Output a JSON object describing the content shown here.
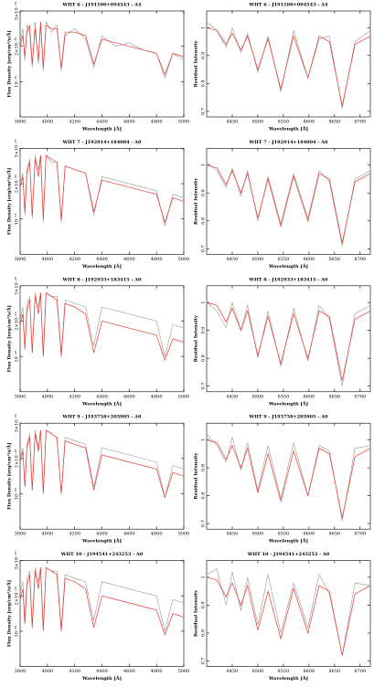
{
  "chart_data": [
    {
      "type": "line",
      "title": "WHT 6 - J191100+094543 - A4",
      "xlabel": "Wavelength [Å]",
      "ylabel": "Flux Density [erg/cm²/s/Å]",
      "x": [
        3800,
        3820,
        3835,
        3850,
        3870,
        3889,
        3910,
        3934,
        3950,
        3970,
        3990,
        4030,
        4070,
        4102,
        4130,
        4200,
        4280,
        4340,
        4400,
        4500,
        4600,
        4700,
        4800,
        4861,
        4920,
        5000
      ],
      "series": [
        {
          "color": "#999999",
          "values": [
            2.1,
            2.5,
            1.6,
            2.6,
            2.4,
            1.4,
            2.7,
            1.5,
            2.6,
            1.3,
            2.7,
            2.4,
            2.6,
            1.3,
            2.3,
            2.5,
            2.2,
            1.4,
            2.3,
            2.0,
            2.1,
            1.9,
            1.8,
            1.1,
            1.8,
            1.6
          ]
        },
        {
          "color": "#e8382e",
          "values": [
            2.0,
            2.3,
            1.7,
            2.4,
            2.6,
            1.5,
            2.5,
            1.6,
            2.7,
            1.4,
            2.6,
            2.5,
            2.5,
            1.4,
            2.4,
            2.4,
            2.3,
            1.5,
            2.2,
            2.1,
            2.0,
            1.9,
            1.8,
            1.2,
            1.8,
            1.7
          ]
        }
      ],
      "xlim": [
        3800,
        5000
      ],
      "xticks": [
        3800,
        4000,
        4200,
        4400,
        4600,
        4800,
        5000
      ],
      "ylim": [
        0,
        3
      ],
      "yticks": [
        {
          "value": 1,
          "label": "10⁻¹⁵"
        },
        {
          "value": 2,
          "label": "2×10⁻¹⁵"
        },
        {
          "value": 3,
          "label": "3×10⁻¹⁵"
        }
      ]
    },
    {
      "type": "line",
      "title": "WHT 6 - J191100+094543 - A4",
      "xlabel": "Wavelength [Å]",
      "ylabel": "Residual Intensity",
      "x": [
        8400,
        8420,
        8438,
        8450,
        8467,
        8480,
        8500,
        8520,
        8545,
        8570,
        8598,
        8620,
        8640,
        8665,
        8690,
        8720
      ],
      "series": [
        {
          "color": "#999999",
          "values": [
            1.02,
            0.99,
            0.93,
            1.0,
            0.91,
            0.98,
            0.84,
            0.97,
            0.77,
            0.99,
            0.82,
            0.96,
            0.97,
            0.71,
            0.95,
            0.99
          ]
        },
        {
          "color": "#e8382e",
          "values": [
            1.0,
            0.99,
            0.94,
            0.98,
            0.92,
            0.97,
            0.85,
            0.96,
            0.78,
            0.97,
            0.82,
            0.97,
            0.95,
            0.72,
            0.94,
            0.97
          ]
        }
      ],
      "xlim": [
        8400,
        8720
      ],
      "xticks": [
        8450,
        8500,
        8550,
        8600,
        8650,
        8700
      ],
      "ylim": [
        0.68,
        1.06
      ],
      "yticks": [
        0.7,
        0.8,
        0.9,
        1
      ]
    },
    {
      "type": "line",
      "title": "WHT 7 - J192914+184004 - A0",
      "xlabel": "Wavelength [Å]",
      "ylabel": "Flux Density [erg/cm²/s/Å]",
      "x": [
        3800,
        3820,
        3835,
        3850,
        3870,
        3889,
        3910,
        3934,
        3950,
        3970,
        3990,
        4030,
        4070,
        4102,
        4130,
        4200,
        4280,
        4340,
        4400,
        4500,
        4600,
        4700,
        4800,
        4861,
        4920,
        5000
      ],
      "series": [
        {
          "color": "#999999",
          "values": [
            2.0,
            2.3,
            1.1,
            2.4,
            2.7,
            1.0,
            2.8,
            2.4,
            2.8,
            0.9,
            2.8,
            2.6,
            2.6,
            0.9,
            2.5,
            2.4,
            2.3,
            1.1,
            2.2,
            2.1,
            2.0,
            1.9,
            1.8,
            0.8,
            1.7,
            1.6
          ]
        },
        {
          "color": "#e8382e",
          "values": [
            1.9,
            2.2,
            1.2,
            2.3,
            2.6,
            1.1,
            2.7,
            2.2,
            2.8,
            1.0,
            2.8,
            2.7,
            2.6,
            1.0,
            2.5,
            2.4,
            2.3,
            1.2,
            2.1,
            2.0,
            1.9,
            1.8,
            1.7,
            0.9,
            1.6,
            1.5
          ]
        }
      ],
      "xlim": [
        3800,
        5000
      ],
      "xticks": [
        3800,
        4000,
        4200,
        4400,
        4600,
        4800,
        5000
      ],
      "ylim": [
        0,
        3
      ],
      "yticks": [
        {
          "value": 1,
          "label": "10⁻¹⁵"
        },
        {
          "value": 2,
          "label": "2×10⁻¹⁵"
        },
        {
          "value": 3,
          "label": "3×10⁻¹⁵"
        }
      ]
    },
    {
      "type": "line",
      "title": "WHT 7 - J192914+184004 - A0",
      "xlabel": "Wavelength [Å]",
      "ylabel": "Residual Intensity",
      "x": [
        8400,
        8420,
        8438,
        8450,
        8467,
        8480,
        8500,
        8520,
        8545,
        8570,
        8598,
        8620,
        8640,
        8665,
        8690,
        8720
      ],
      "series": [
        {
          "color": "#999999",
          "values": [
            1.01,
            0.98,
            0.92,
            0.99,
            0.89,
            0.98,
            0.8,
            0.96,
            0.79,
            0.97,
            0.81,
            0.98,
            0.94,
            0.71,
            0.95,
            0.98
          ]
        },
        {
          "color": "#e8382e",
          "values": [
            1.0,
            0.99,
            0.93,
            0.98,
            0.9,
            0.97,
            0.81,
            0.95,
            0.78,
            0.96,
            0.8,
            0.97,
            0.95,
            0.72,
            0.94,
            0.97
          ]
        }
      ],
      "xlim": [
        8400,
        8720
      ],
      "xticks": [
        8450,
        8500,
        8550,
        8600,
        8650,
        8700
      ],
      "ylim": [
        0.68,
        1.06
      ],
      "yticks": [
        0.7,
        0.8,
        0.9,
        1
      ]
    },
    {
      "type": "line",
      "title": "WHT 8 - J192933+183415 - A0",
      "xlabel": "Wavelength [Å]",
      "ylabel": "Flux Density [erg/cm²/s/Å]",
      "x": [
        3800,
        3820,
        3835,
        3850,
        3870,
        3889,
        3910,
        3934,
        3950,
        3970,
        3990,
        4030,
        4070,
        4102,
        4130,
        4200,
        4280,
        4340,
        4400,
        4500,
        4600,
        4700,
        4800,
        4861,
        4920,
        5000
      ],
      "series": [
        {
          "color": "#999999",
          "values": [
            2.0,
            2.4,
            1.2,
            2.5,
            2.7,
            1.1,
            2.8,
            2.4,
            2.8,
            1.0,
            2.8,
            2.7,
            2.7,
            1.1,
            2.6,
            2.5,
            2.4,
            1.3,
            2.4,
            2.3,
            2.2,
            2.1,
            2.0,
            1.0,
            1.9,
            1.8
          ]
        },
        {
          "color": "#e8382e",
          "values": [
            1.9,
            2.2,
            1.2,
            2.3,
            2.6,
            1.1,
            2.7,
            2.2,
            2.8,
            1.0,
            2.8,
            2.7,
            2.6,
            1.0,
            2.5,
            2.4,
            2.2,
            1.1,
            2.0,
            1.9,
            1.8,
            1.7,
            1.6,
            0.9,
            1.5,
            1.4
          ]
        }
      ],
      "xlim": [
        3800,
        5000
      ],
      "xticks": [
        3800,
        4000,
        4200,
        4400,
        4600,
        4800,
        5000
      ],
      "ylim": [
        0,
        3
      ],
      "yticks": [
        {
          "value": 1,
          "label": "10⁻¹⁵"
        },
        {
          "value": 2,
          "label": "2×10⁻¹⁵"
        },
        {
          "value": 3,
          "label": "3×10⁻¹⁵"
        }
      ]
    },
    {
      "type": "line",
      "title": "WHT 8 - J192933+183415 - A0",
      "xlabel": "Wavelength [Å]",
      "ylabel": "Residual Intensity",
      "x": [
        8400,
        8420,
        8438,
        8450,
        8467,
        8480,
        8500,
        8520,
        8545,
        8570,
        8598,
        8620,
        8640,
        8665,
        8690,
        8720
      ],
      "series": [
        {
          "color": "#999999",
          "values": [
            1.0,
            0.97,
            0.91,
            1.0,
            0.9,
            0.99,
            0.8,
            0.97,
            0.77,
            0.98,
            0.79,
            0.99,
            0.94,
            0.7,
            0.96,
            0.99
          ]
        },
        {
          "color": "#e8382e",
          "values": [
            1.0,
            0.99,
            0.93,
            0.98,
            0.9,
            0.97,
            0.81,
            0.95,
            0.78,
            0.96,
            0.8,
            0.97,
            0.95,
            0.72,
            0.94,
            0.97
          ]
        }
      ],
      "xlim": [
        8400,
        8720
      ],
      "xticks": [
        8450,
        8500,
        8550,
        8600,
        8650,
        8700
      ],
      "ylim": [
        0.68,
        1.06
      ],
      "yticks": [
        0.7,
        0.8,
        0.9,
        1
      ]
    },
    {
      "type": "line",
      "title": "WHT 9 - J193758+205905 - A0",
      "xlabel": "Wavelength [Å]",
      "ylabel": "Flux Density [erg/cm²/s/Å]",
      "x": [
        3800,
        3820,
        3835,
        3850,
        3870,
        3889,
        3910,
        3934,
        3950,
        3970,
        3990,
        4030,
        4070,
        4102,
        4130,
        4200,
        4280,
        4340,
        4400,
        4500,
        4600,
        4700,
        4800,
        4861,
        4920,
        5000
      ],
      "series": [
        {
          "color": "#999999",
          "values": [
            2.0,
            2.3,
            1.2,
            2.4,
            2.7,
            1.1,
            2.8,
            2.3,
            2.8,
            1.0,
            2.8,
            2.7,
            2.6,
            1.0,
            2.6,
            2.5,
            2.4,
            1.2,
            2.3,
            2.2,
            2.1,
            2.0,
            1.9,
            0.9,
            1.8,
            1.7
          ]
        },
        {
          "color": "#e8382e",
          "values": [
            1.9,
            2.2,
            1.2,
            2.3,
            2.6,
            1.1,
            2.7,
            2.2,
            2.8,
            1.0,
            2.8,
            2.7,
            2.6,
            1.0,
            2.5,
            2.4,
            2.3,
            1.1,
            2.1,
            2.0,
            1.9,
            1.8,
            1.7,
            0.9,
            1.6,
            1.5
          ]
        }
      ],
      "xlim": [
        3800,
        5000
      ],
      "xticks": [
        3800,
        4000,
        4200,
        4400,
        4600,
        4800,
        5000
      ],
      "ylim": [
        0,
        3
      ],
      "yticks": [
        {
          "value": 1,
          "label": "10⁻¹⁵"
        },
        {
          "value": 2,
          "label": "2×10⁻¹⁵"
        },
        {
          "value": 3,
          "label": "3×10⁻¹⁵"
        }
      ]
    },
    {
      "type": "line",
      "title": "WHT 9 - J193758+205905 - A0",
      "xlabel": "Wavelength [Å]",
      "ylabel": "Residual Intensity",
      "x": [
        8400,
        8420,
        8438,
        8450,
        8467,
        8480,
        8500,
        8520,
        8545,
        8570,
        8598,
        8620,
        8640,
        8665,
        8690,
        8720
      ],
      "series": [
        {
          "color": "#999999",
          "values": [
            1.02,
            0.98,
            0.92,
            1.01,
            0.89,
            0.99,
            0.82,
            0.98,
            0.79,
            0.99,
            0.8,
            0.98,
            0.96,
            0.71,
            0.97,
            0.98
          ]
        },
        {
          "color": "#e8382e",
          "values": [
            1.0,
            0.99,
            0.93,
            0.98,
            0.9,
            0.97,
            0.81,
            0.95,
            0.78,
            0.96,
            0.8,
            0.97,
            0.95,
            0.72,
            0.94,
            0.97
          ]
        }
      ],
      "xlim": [
        8400,
        8720
      ],
      "xticks": [
        8450,
        8500,
        8550,
        8600,
        8650,
        8700
      ],
      "ylim": [
        0.68,
        1.06
      ],
      "yticks": [
        0.7,
        0.8,
        0.9,
        1
      ]
    },
    {
      "type": "line",
      "title": "WHT 10 - J194541+243253 - A0",
      "xlabel": "Wavelength [Å]",
      "ylabel": "Flux Density [erg/cm²/s/Å]",
      "x": [
        3800,
        3820,
        3835,
        3850,
        3870,
        3889,
        3910,
        3934,
        3950,
        3970,
        3990,
        4030,
        4070,
        4102,
        4130,
        4200,
        4280,
        4340,
        4400,
        4500,
        4600,
        4700,
        4800,
        4861,
        4920,
        5000
      ],
      "series": [
        {
          "color": "#999999",
          "values": [
            2.1,
            2.4,
            1.3,
            2.5,
            2.7,
            1.2,
            2.8,
            2.4,
            2.8,
            1.1,
            2.8,
            2.7,
            2.7,
            1.1,
            2.6,
            2.5,
            2.4,
            1.3,
            2.4,
            2.3,
            2.2,
            2.1,
            2.0,
            1.0,
            1.9,
            1.8
          ]
        },
        {
          "color": "#e8382e",
          "values": [
            1.9,
            2.2,
            1.2,
            2.3,
            2.6,
            1.1,
            2.7,
            2.2,
            2.8,
            1.0,
            2.8,
            2.7,
            2.6,
            1.0,
            2.5,
            2.4,
            2.2,
            1.1,
            2.0,
            1.9,
            1.8,
            1.7,
            1.6,
            0.9,
            1.5,
            1.4
          ]
        }
      ],
      "xlim": [
        3800,
        5000
      ],
      "xticks": [
        3800,
        4000,
        4200,
        4400,
        4600,
        4800,
        5000
      ],
      "ylim": [
        0,
        3
      ],
      "yticks": [
        {
          "value": 1,
          "label": "10⁻¹⁵"
        },
        {
          "value": 2,
          "label": "2×10⁻¹⁵"
        },
        {
          "value": 3,
          "label": "3×10⁻¹⁵"
        }
      ]
    },
    {
      "type": "line",
      "title": "WHT 10 - J194541+243253 - A0",
      "xlabel": "Wavelength [Å]",
      "ylabel": "Residual Intensity",
      "x": [
        8400,
        8420,
        8438,
        8450,
        8467,
        8480,
        8500,
        8520,
        8545,
        8570,
        8598,
        8620,
        8640,
        8665,
        8690,
        8720
      ],
      "series": [
        {
          "color": "#999999",
          "values": [
            1.01,
            1.03,
            0.9,
            1.02,
            0.88,
            1.0,
            0.83,
            1.01,
            0.8,
            0.98,
            0.82,
            1.01,
            0.94,
            0.72,
            0.98,
            0.97
          ]
        },
        {
          "color": "#e8382e",
          "values": [
            1.0,
            0.99,
            0.93,
            0.98,
            0.9,
            0.97,
            0.81,
            0.95,
            0.78,
            0.96,
            0.8,
            0.97,
            0.95,
            0.72,
            0.94,
            0.97
          ]
        }
      ],
      "xlim": [
        8400,
        8720
      ],
      "xticks": [
        8450,
        8500,
        8550,
        8600,
        8650,
        8700
      ],
      "ylim": [
        0.68,
        1.06
      ],
      "yticks": [
        0.7,
        0.8,
        0.9,
        1
      ]
    }
  ]
}
